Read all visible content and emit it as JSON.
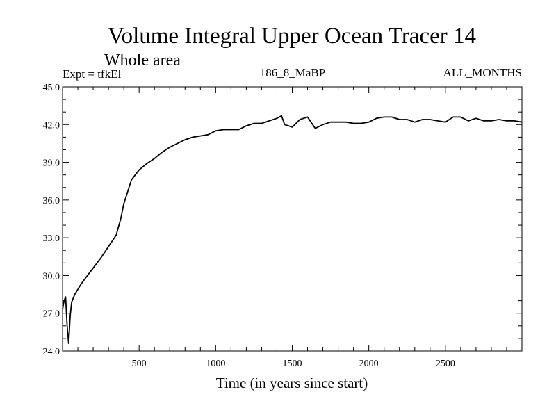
{
  "chart_data": {
    "type": "line",
    "title": "Volume Integral Upper Ocean Tracer 14",
    "subtitle": "Whole area",
    "header_left": "Expt = tfkEl",
    "header_center": "186_8_MaBP",
    "header_right": "ALL_MONTHS",
    "xlabel": "Time (in years since start)",
    "ylabel": "",
    "xlim": [
      0,
      3000
    ],
    "ylim": [
      24.0,
      45.0
    ],
    "x_ticks": [
      500,
      1000,
      1500,
      2000,
      2500
    ],
    "x_tick_labels": [
      "500",
      "1000",
      "1500",
      "2000",
      "2500"
    ],
    "y_ticks": [
      24.0,
      27.0,
      30.0,
      33.0,
      36.0,
      39.0,
      42.0,
      45.0
    ],
    "y_tick_labels": [
      "24.0",
      "27.0",
      "30.0",
      "33.0",
      "36.0",
      "39.0",
      "42.0",
      "45.0"
    ],
    "grid": false,
    "line_color": "#000000",
    "series": [
      {
        "x": [
          0,
          10,
          20,
          30,
          40,
          50,
          60,
          70,
          80,
          100,
          120,
          150,
          200,
          250,
          300,
          350,
          380,
          400,
          450,
          500,
          550,
          600,
          650,
          700,
          750,
          800,
          850,
          900,
          950,
          1000,
          1050,
          1100,
          1150,
          1200,
          1250,
          1300,
          1350,
          1400,
          1430,
          1450,
          1500,
          1550,
          1600,
          1650,
          1700,
          1750,
          1800,
          1850,
          1900,
          1950,
          2000,
          2050,
          2100,
          2150,
          2200,
          2250,
          2300,
          2350,
          2400,
          2450,
          2500,
          2550,
          2600,
          2650,
          2700,
          2750,
          2800,
          2850,
          2900,
          2950,
          3000
        ],
        "values": [
          27.3,
          28.0,
          28.3,
          26.0,
          24.6,
          26.8,
          27.9,
          28.2,
          28.5,
          28.9,
          29.3,
          29.8,
          30.6,
          31.4,
          32.3,
          33.2,
          34.5,
          35.7,
          37.6,
          38.4,
          38.9,
          39.3,
          39.8,
          40.2,
          40.5,
          40.8,
          41.0,
          41.1,
          41.2,
          41.5,
          41.6,
          41.6,
          41.6,
          41.9,
          42.1,
          42.1,
          42.3,
          42.5,
          42.7,
          42.0,
          41.8,
          42.4,
          42.6,
          41.7,
          42.0,
          42.2,
          42.2,
          42.2,
          42.1,
          42.1,
          42.2,
          42.5,
          42.6,
          42.6,
          42.4,
          42.4,
          42.2,
          42.4,
          42.4,
          42.3,
          42.2,
          42.6,
          42.6,
          42.3,
          42.5,
          42.3,
          42.3,
          42.4,
          42.3,
          42.3,
          42.2
        ]
      }
    ]
  }
}
